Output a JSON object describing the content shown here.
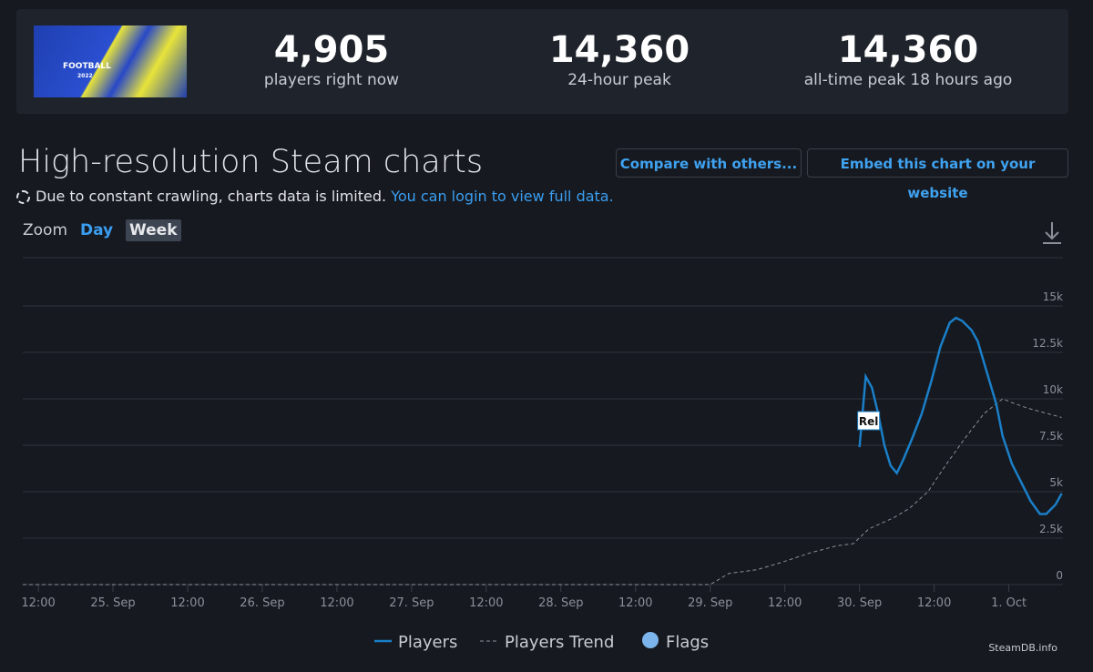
{
  "header": {
    "image_text": [
      "FOOTBALL",
      "2022"
    ],
    "stats": [
      {
        "value": "4,905",
        "label": "players right now"
      },
      {
        "value": "14,360",
        "label": "24-hour peak"
      },
      {
        "value": "14,360",
        "label": "all-time peak 18 hours ago"
      }
    ]
  },
  "section": {
    "title": "High-resolution Steam charts",
    "notice": "Due to constant crawling, charts data is limited.",
    "notice_link": "You can login to view full data.",
    "buttons": [
      "Compare with others...",
      "Embed this chart on your website"
    ],
    "zoom_label": "Zoom",
    "zoom_options": [
      "Day",
      "Week"
    ]
  },
  "chart_data": {
    "type": "line",
    "xlim": [
      9.5,
      176.7
    ],
    "xticks": [
      {
        "value": 12,
        "label": "12:00"
      },
      {
        "value": 24,
        "label": "25. Sep"
      },
      {
        "value": 36,
        "label": "12:00"
      },
      {
        "value": 48,
        "label": "26. Sep"
      },
      {
        "value": 60,
        "label": "12:00"
      },
      {
        "value": 72,
        "label": "27. Sep"
      },
      {
        "value": 84,
        "label": "12:00"
      },
      {
        "value": 96,
        "label": "28. Sep"
      },
      {
        "value": 108,
        "label": "12:00"
      },
      {
        "value": 120,
        "label": "29. Sep"
      },
      {
        "value": 132,
        "label": "12:00"
      },
      {
        "value": 144,
        "label": "30. Sep"
      },
      {
        "value": 156,
        "label": "12:00"
      },
      {
        "value": 168,
        "label": "1. Oct"
      }
    ],
    "ylim": [
      0,
      17600
    ],
    "yticks": [
      0,
      {
        "value": 2500,
        "label": "2.5k"
      },
      {
        "value": 5000,
        "label": "5k"
      },
      {
        "value": 7500,
        "label": "7.5k"
      },
      {
        "value": 10000,
        "label": "10k"
      },
      {
        "value": 12500,
        "label": "12.5k"
      },
      {
        "value": 15000,
        "label": "15k"
      }
    ],
    "grid": true,
    "legend": "bottom",
    "series": [
      {
        "name": "Players",
        "color": "#1a7fc8",
        "dash": false,
        "x": [
          144,
          145,
          146,
          147,
          148,
          149,
          150,
          151,
          152.5,
          154,
          155.5,
          157,
          158.5,
          159.5,
          160.5,
          162,
          163,
          164.5,
          166,
          167,
          168.5,
          170,
          171.5,
          173,
          174,
          175.5,
          176.5
        ],
        "values": [
          7400,
          11200,
          10600,
          9200,
          7500,
          6400,
          6000,
          6700,
          7900,
          9200,
          10900,
          12800,
          14100,
          14360,
          14200,
          13700,
          13100,
          11400,
          9700,
          8000,
          6500,
          5500,
          4500,
          3800,
          3800,
          4300,
          4905
        ]
      },
      {
        "name": "Players Trend",
        "color": "#8a8f99",
        "dash": true,
        "x": [
          9.5,
          120,
          123,
          127.5,
          131.5,
          136,
          140.5,
          143,
          145.5,
          149.5,
          152,
          155,
          158,
          161,
          164,
          167,
          168.5,
          171,
          176.5
        ],
        "values": [
          0,
          0,
          600,
          800,
          1200,
          1700,
          2100,
          2200,
          3000,
          3600,
          4100,
          5000,
          6500,
          7900,
          9200,
          10000,
          9800,
          9500,
          9000
        ]
      }
    ],
    "flags_name": "Flags",
    "flags_color": "#7cb5ec",
    "flags": [
      {
        "x": 144,
        "label": "Rel"
      }
    ],
    "credit": "SteamDB.info"
  }
}
